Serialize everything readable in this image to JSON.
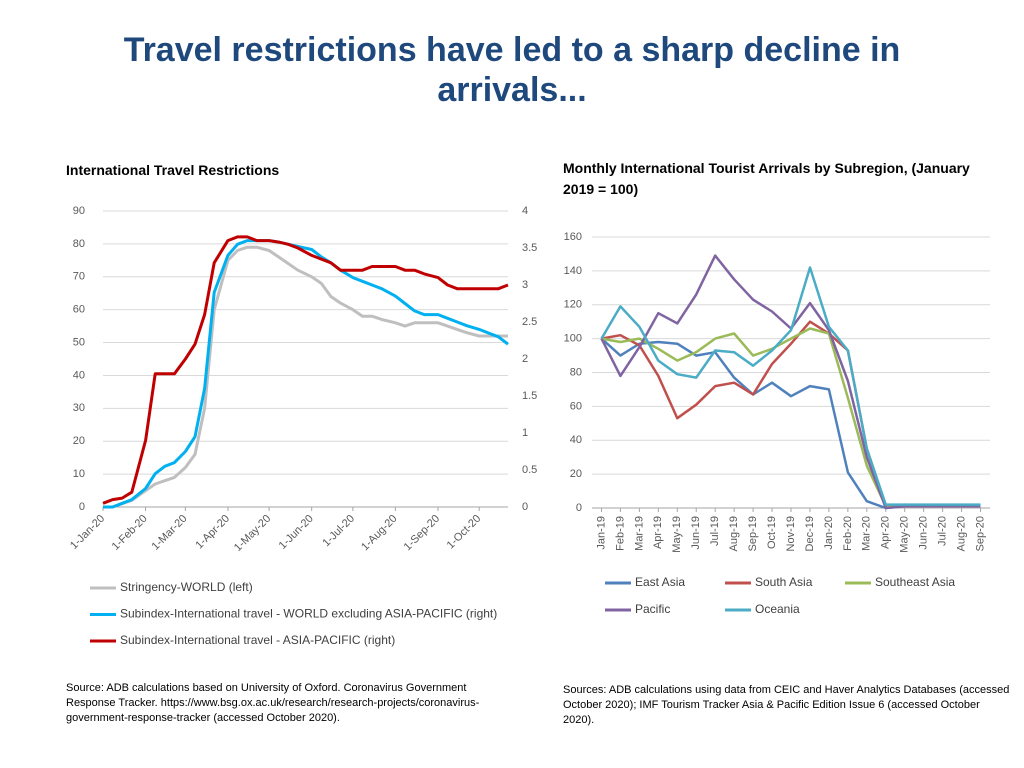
{
  "title": "Travel restrictions have led to a sharp decline in arrivals...",
  "chart_data": [
    {
      "type": "line",
      "title": "International Travel Restrictions",
      "x": [
        "1-Jan-20",
        "8-Jan-20",
        "15-Jan-20",
        "22-Jan-20",
        "1-Feb-20",
        "8-Feb-20",
        "15-Feb-20",
        "22-Feb-20",
        "1-Mar-20",
        "8-Mar-20",
        "15-Mar-20",
        "22-Mar-20",
        "1-Apr-20",
        "8-Apr-20",
        "15-Apr-20",
        "22-Apr-20",
        "1-May-20",
        "8-May-20",
        "15-May-20",
        "22-May-20",
        "1-Jun-20",
        "8-Jun-20",
        "15-Jun-20",
        "22-Jun-20",
        "1-Jul-20",
        "8-Jul-20",
        "15-Jul-20",
        "22-Jul-20",
        "1-Aug-20",
        "8-Aug-20",
        "15-Aug-20",
        "22-Aug-20",
        "1-Sep-20",
        "8-Sep-20",
        "15-Sep-20",
        "22-Sep-20",
        "1-Oct-20",
        "8-Oct-20",
        "15-Oct-20",
        "22-Oct-20"
      ],
      "xlim": [
        "1-Jan-20",
        "22-Oct-20"
      ],
      "xticks": [
        "1-Jan-20",
        "1-Feb-20",
        "1-Mar-20",
        "1-Apr-20",
        "1-May-20",
        "1-Jun-20",
        "1-Jul-20",
        "1-Aug-20",
        "1-Sep-20",
        "1-Oct-20"
      ],
      "ylim": [
        0,
        90
      ],
      "yticks": [
        0,
        10,
        20,
        30,
        40,
        50,
        60,
        70,
        80,
        90
      ],
      "y2lim": [
        0,
        4
      ],
      "y2ticks": [
        0,
        0.5,
        1,
        1.5,
        2,
        2.5,
        3,
        3.5,
        4
      ],
      "grid": true,
      "legend": "bottom",
      "series": [
        {
          "name": "Stringency-WORLD (left)",
          "color": "#bfbfbf",
          "values": [
            0,
            0,
            1,
            2,
            5,
            7,
            8,
            9,
            12,
            16,
            30,
            60,
            75,
            78,
            79,
            79,
            78,
            76,
            74,
            72,
            70,
            68,
            64,
            62,
            60,
            58,
            58,
            57,
            56,
            55,
            56,
            56,
            56,
            55,
            54,
            53,
            52,
            52,
            52,
            52
          ]
        },
        {
          "name": "Subindex-International travel - WORLD excluding ASIA-PACIFIC (right)",
          "color": "#00b0f0",
          "axis": "y2",
          "values": [
            0,
            0,
            0.05,
            0.1,
            0.25,
            0.45,
            0.55,
            0.6,
            0.75,
            0.95,
            1.6,
            2.9,
            3.4,
            3.55,
            3.6,
            3.6,
            3.6,
            3.58,
            3.55,
            3.52,
            3.48,
            3.38,
            3.3,
            3.2,
            3.1,
            3.05,
            3,
            2.95,
            2.85,
            2.75,
            2.65,
            2.6,
            2.6,
            2.55,
            2.5,
            2.45,
            2.4,
            2.35,
            2.3,
            2.2
          ]
        },
        {
          "name": "Subindex-International travel - ASIA-PACIFIC (right)",
          "color": "#c00000",
          "axis": "y2",
          "values": [
            0.05,
            0.1,
            0.12,
            0.2,
            0.9,
            1.8,
            1.8,
            1.8,
            2,
            2.2,
            2.6,
            3.3,
            3.6,
            3.65,
            3.65,
            3.6,
            3.6,
            3.58,
            3.55,
            3.5,
            3.4,
            3.35,
            3.3,
            3.2,
            3.2,
            3.2,
            3.25,
            3.25,
            3.25,
            3.2,
            3.2,
            3.15,
            3.1,
            3,
            2.95,
            2.95,
            2.95,
            2.95,
            2.95,
            3
          ]
        }
      ],
      "source": "Source: ADB calculations based on University of Oxford. Coronavirus Government Response Tracker. https://www.bsg.ox.ac.uk/research/research-projects/coronavirus-government-response-tracker (accessed October 2020)."
    },
    {
      "type": "line",
      "title": "Monthly International Tourist Arrivals by Subregion, (January 2019 = 100)",
      "categories": [
        "Jan-19",
        "Feb-19",
        "Mar-19",
        "Apr-19",
        "May-19",
        "Jun-19",
        "Jul-19",
        "Aug-19",
        "Sep-19",
        "Oct-19",
        "Nov-19",
        "Dec-19",
        "Jan-20",
        "Feb-20",
        "Mar-20",
        "Apr-20",
        "May-20",
        "Jun-20",
        "Jul-20",
        "Aug-20",
        "Sep-20"
      ],
      "ylim": [
        0,
        160
      ],
      "yticks": [
        0,
        20,
        40,
        60,
        80,
        100,
        120,
        140,
        160
      ],
      "grid": true,
      "legend": "bottom",
      "series": [
        {
          "name": "East Asia",
          "color": "#4f81bd",
          "values": [
            100,
            90,
            97,
            98,
            97,
            90,
            92,
            77,
            67,
            74,
            66,
            72,
            70,
            21,
            4,
            0,
            1,
            1,
            1,
            1,
            1
          ]
        },
        {
          "name": "South Asia",
          "color": "#c0504d",
          "values": [
            100,
            102,
            96,
            78,
            53,
            61,
            72,
            74,
            67,
            85,
            97,
            110,
            103,
            93,
            35,
            1,
            1,
            1,
            1,
            1,
            1
          ]
        },
        {
          "name": "Southeast Asia",
          "color": "#9bbb59",
          "values": [
            100,
            98,
            100,
            94,
            87,
            92,
            100,
            103,
            90,
            94,
            100,
            106,
            103,
            65,
            25,
            1,
            2,
            1,
            1,
            1,
            1
          ]
        },
        {
          "name": "Pacific",
          "color": "#8064a2",
          "values": [
            100,
            78,
            95,
            115,
            109,
            126,
            149,
            135,
            123,
            116,
            106,
            121,
            105,
            75,
            30,
            0,
            1,
            1,
            1,
            1,
            1
          ]
        },
        {
          "name": "Oceania",
          "color": "#4bacc6",
          "values": [
            100,
            119,
            107,
            87,
            79,
            77,
            93,
            92,
            84,
            93,
            105,
            142,
            107,
            93,
            35,
            2,
            2,
            2,
            2,
            2,
            2
          ]
        }
      ],
      "source": "Sources: ADB calculations using data from CEIC and Haver Analytics Databases (accessed October 2020); IMF Tourism Tracker Asia & Pacific Edition Issue 6 (accessed October 2020)."
    }
  ]
}
